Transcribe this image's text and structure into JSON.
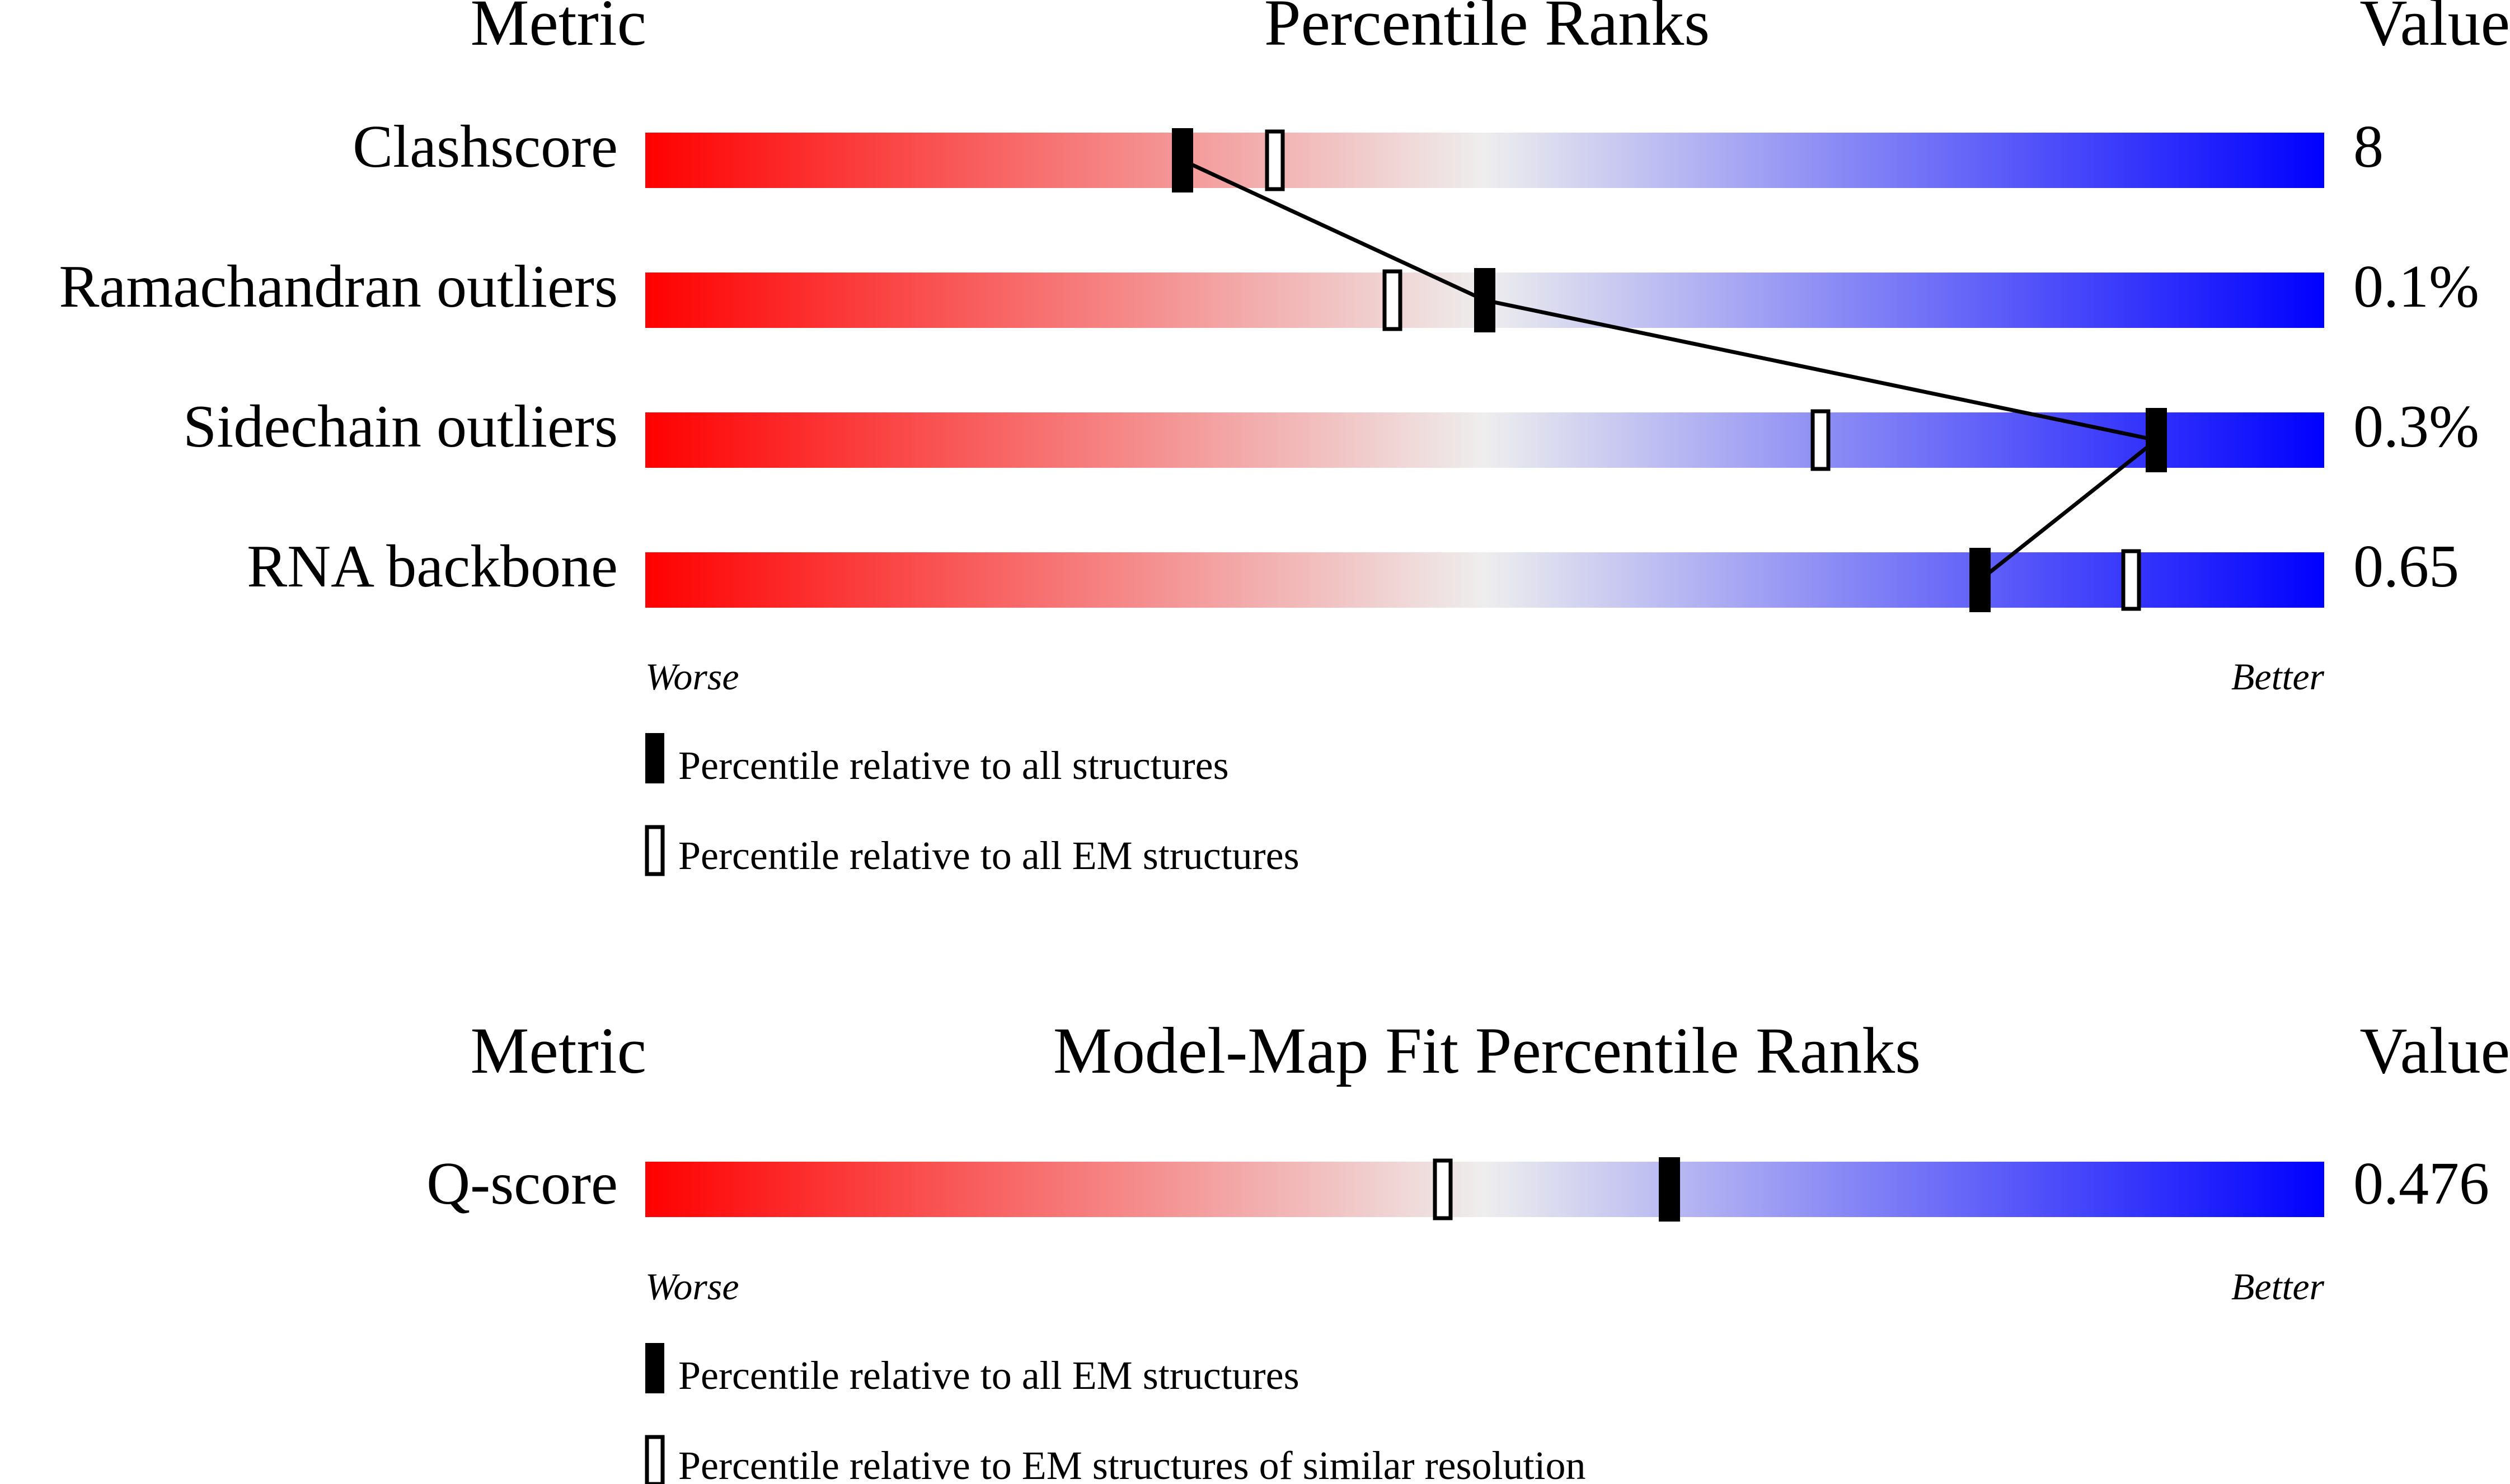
{
  "colors": {
    "worse": "#ff0000",
    "neutral": "#eeeeee",
    "better": "#0000ff",
    "marker_all": "#000000",
    "marker_subset": "#ffffff"
  },
  "chart_data": [
    {
      "type": "percentile-slider",
      "headers": {
        "metric": "Metric",
        "title": "Percentile Ranks",
        "value": "Value"
      },
      "scale": {
        "min": 0,
        "max": 100,
        "low_label": "Worse",
        "high_label": "Better"
      },
      "rows": [
        {
          "metric": "Clashscore",
          "value": "8",
          "percentile_all": 32,
          "percentile_subset": 37.5
        },
        {
          "metric": "Ramachandran outliers",
          "value": "0.1%",
          "percentile_all": 50,
          "percentile_subset": 44.5
        },
        {
          "metric": "Sidechain outliers",
          "value": "0.3%",
          "percentile_all": 90,
          "percentile_subset": 70
        },
        {
          "metric": "RNA backbone",
          "value": "0.65",
          "percentile_all": 79.5,
          "percentile_subset": 88.5
        }
      ],
      "connect_all": true,
      "legend": [
        {
          "marker": "filled",
          "label": "Percentile relative to all structures"
        },
        {
          "marker": "open",
          "label": "Percentile relative to all EM structures"
        }
      ]
    },
    {
      "type": "percentile-slider",
      "headers": {
        "metric": "Metric",
        "title": "Model-Map Fit Percentile Ranks",
        "value": "Value"
      },
      "scale": {
        "min": 0,
        "max": 100,
        "low_label": "Worse",
        "high_label": "Better"
      },
      "rows": [
        {
          "metric": "Q-score",
          "value": "0.476",
          "percentile_all": 61,
          "percentile_subset": 47.5
        }
      ],
      "connect_all": false,
      "legend": [
        {
          "marker": "filled",
          "label": "Percentile relative to all EM structures"
        },
        {
          "marker": "open",
          "label": "Percentile relative to EM structures of similar resolution"
        }
      ]
    }
  ]
}
